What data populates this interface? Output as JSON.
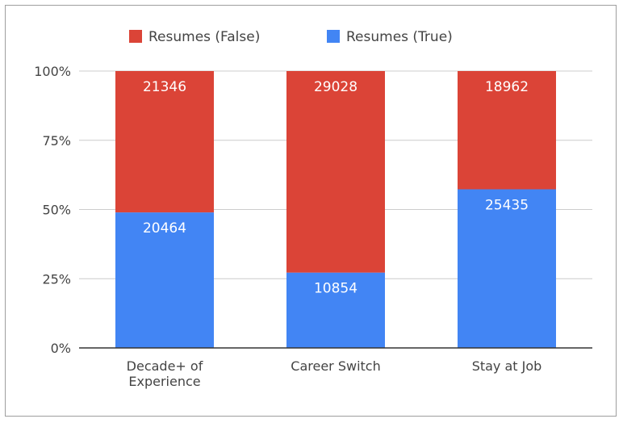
{
  "chart_data": {
    "type": "bar",
    "stacked": "percent",
    "title": "",
    "xlabel": "",
    "ylabel": "",
    "ylim": [
      0,
      100
    ],
    "y_ticks": [
      "0%",
      "25%",
      "50%",
      "75%",
      "100%"
    ],
    "grid": true,
    "legend_position": "top",
    "categories": [
      [
        "Decade+ of",
        "Experience"
      ],
      [
        "Career Switch"
      ],
      [
        "Stay at Job"
      ]
    ],
    "series": [
      {
        "name": "Resumes (True)",
        "color": "#4285f4",
        "values": [
          20464,
          10854,
          25435
        ]
      },
      {
        "name": "Resumes (False)",
        "color": "#db4437",
        "values": [
          21346,
          29028,
          18962
        ]
      }
    ],
    "legend_order": [
      1,
      0
    ]
  }
}
